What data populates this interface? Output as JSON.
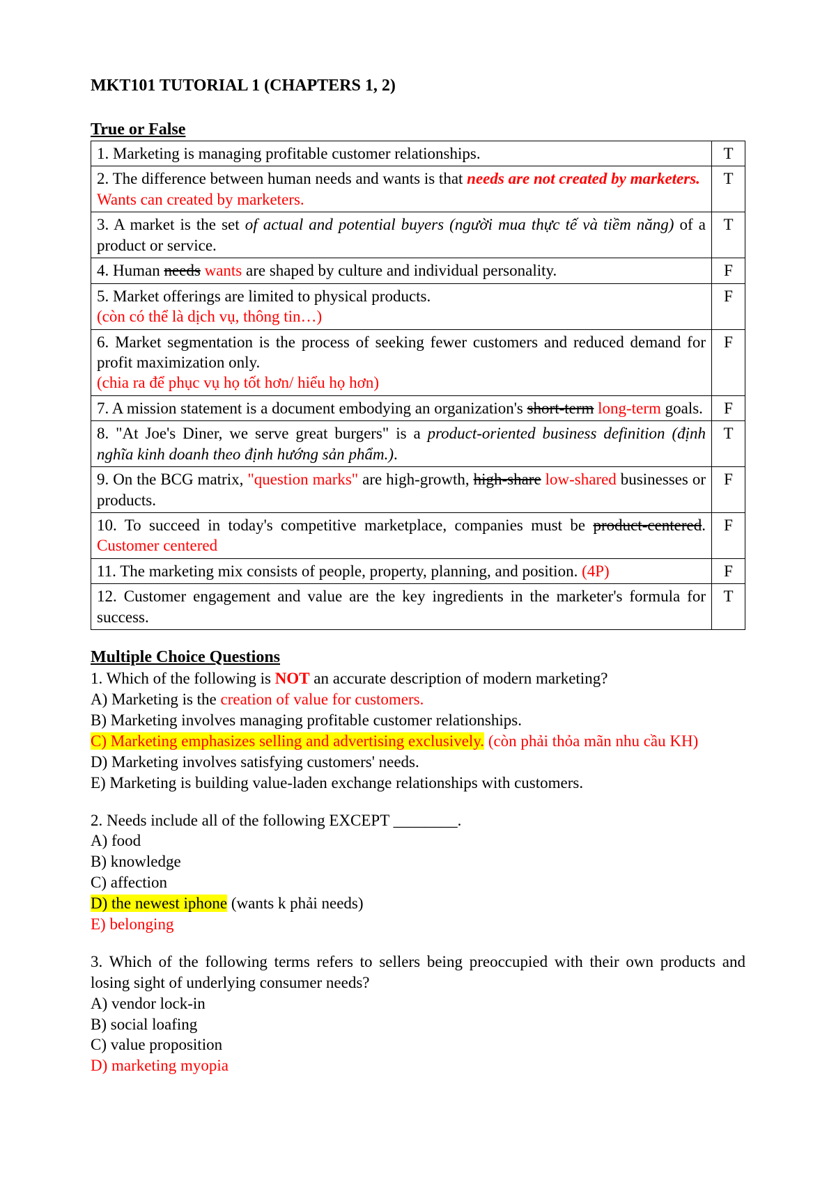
{
  "colors": {
    "text": "#000000",
    "red": "#ff0000",
    "highlight": "#ffff00",
    "background": "#ffffff",
    "border": "#000000"
  },
  "typography": {
    "font_family": "Times New Roman",
    "title_fontsize": 24,
    "body_fontsize": 23
  },
  "title": "MKT101 TUTORIAL 1 (CHAPTERS 1, 2)",
  "tf": {
    "heading": "True or False",
    "rows": {
      "r1": {
        "text": "1. Marketing is managing profitable customer relationships.",
        "ans": "T"
      },
      "r2": {
        "lead": "2. The difference between human needs and wants is that ",
        "em1": "needs are not created by marketers.",
        "note": "Wants can created by marketers.",
        "ans": "T"
      },
      "r3": {
        "lead": "3. A market is the set ",
        "em": "of actual and potential buyers (người mua thực tế và tiềm năng)",
        "tail": " of a product or service.",
        "ans": "T"
      },
      "r4": {
        "lead": "4. Human ",
        "strike": "needs",
        "repl": " wants",
        "tail": " are shaped by culture and individual personality.",
        "ans": "F"
      },
      "r5": {
        "text": "5. Market offerings are limited to physical products.",
        "note": "(còn có thể là dịch vụ, thông tin…)",
        "ans": "F"
      },
      "r6": {
        "text": "6. Market segmentation is the process of seeking fewer customers and reduced demand for profit maximization only.",
        "note": "(chia ra để phục vụ họ tốt hơn/ hiểu họ hơn)",
        "ans": "F"
      },
      "r7": {
        "lead": "7. A mission statement is a document embodying an organization's ",
        "strike": "short-term",
        "repl": " long-term",
        "tail": " goals.",
        "ans": "F"
      },
      "r8": {
        "lead": "8. \"At Joe's Diner, we serve great burgers\" is a ",
        "em": "product-oriented business definition (định nghĩa kinh doanh theo định hướng sản phẩm.)",
        "tail": ".",
        "ans": "T"
      },
      "r9": {
        "lead": "9. On the BCG matrix, ",
        "quote": "\"question marks\"",
        "mid": " are high-growth, ",
        "strike": "high-share",
        "repl": " low-shared",
        "tail": " businesses or products.",
        "ans": "F"
      },
      "r10": {
        "lead": "10. To succeed in today's competitive marketplace, companies must be ",
        "strike": "product-centered",
        "dot": ". ",
        "repl": "Customer centered",
        "ans": "F"
      },
      "r11": {
        "text": "11. The marketing mix consists of people, property, planning, and position.",
        "note": " (4P)",
        "ans": "F"
      },
      "r12": {
        "text": "12. Customer engagement and value are the key ingredients in the marketer's formula for success.",
        "ans": "T"
      }
    }
  },
  "mcq": {
    "heading": "Multiple Choice Questions",
    "q1": {
      "stem_a": "1. Which of the following is ",
      "stem_not": "NOT",
      "stem_b": " an accurate description of modern marketing?",
      "a_lead": "A) Marketing is the ",
      "a_red": "creation of value for customers.",
      "b": "B) Marketing involves managing profitable customer relationships.",
      "c_hl": "C) Marketing emphasizes selling and advertising exclusively.",
      "c_note": " (còn phải thỏa mãn nhu cầu KH)",
      "d": "D) Marketing involves satisfying customers' needs.",
      "e": "E) Marketing is building value-laden exchange relationships with customers."
    },
    "q2": {
      "stem": "2. Needs include all of the following EXCEPT ________.",
      "a": "A) food",
      "b": "B) knowledge",
      "c": "C) affection",
      "d_hl": "D) the newest iphone",
      "d_note": " (wants k phải needs)",
      "e": "E) belonging"
    },
    "q3": {
      "stem": "3. Which of the following terms refers to sellers being preoccupied with their own products and losing sight of underlying consumer needs?",
      "a": "A) vendor lock-in",
      "b": "B) social loafing",
      "c": "C) value proposition",
      "d": "D) marketing myopia"
    }
  }
}
